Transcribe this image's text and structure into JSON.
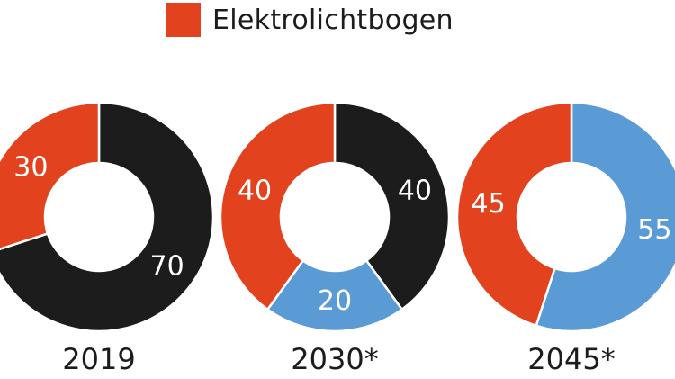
{
  "legend": {
    "label": "Elektrolichtbogen",
    "color": "#e2431e"
  },
  "chart_data": {
    "type": "pie",
    "variant": "donut",
    "legend": [
      {
        "name": "Elektrolichtbogen",
        "color": "#e2431e"
      }
    ],
    "charts": [
      {
        "year": "2019",
        "segments": [
          {
            "value": 70,
            "label": "70",
            "color": "#1c1c1c"
          },
          {
            "value": 30,
            "label": "30",
            "color": "#e2431e"
          }
        ]
      },
      {
        "year": "2030*",
        "segments": [
          {
            "value": 40,
            "label": "40",
            "color": "#1c1c1c"
          },
          {
            "value": 20,
            "label": "20",
            "color": "#5b9bd5"
          },
          {
            "value": 40,
            "label": "40",
            "color": "#e2431e"
          }
        ]
      },
      {
        "year": "2045*",
        "segments": [
          {
            "value": 55,
            "label": "55",
            "color": "#5b9bd5"
          },
          {
            "value": 45,
            "label": "45",
            "color": "#e2431e"
          }
        ]
      }
    ]
  }
}
